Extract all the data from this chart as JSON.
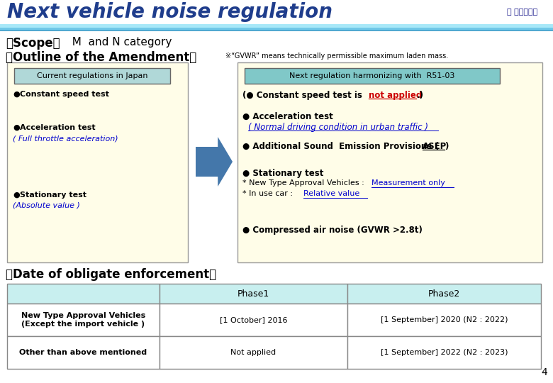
{
  "title": "Next vehicle noise regulation",
  "title_color": "#1F3D8C",
  "title_fontsize": 20,
  "scope_label": "』Scope『",
  "scope_text": "  M  and N category",
  "outline_label": "』Outline of the Amendment『",
  "gvwr_note": "※“GVWR” means technically permissible maximum laden mass.",
  "left_box_bg": "#FFFDE8",
  "right_box_bg": "#FFFDE8",
  "left_header_bg": "#B0D8D8",
  "right_header_bg": "#80C8C8",
  "left_header_text": "Current regulations in Japan",
  "right_header_text": "Next regulation harmonizing with  R51-03",
  "date_label": "』Date of obligate enforcement『",
  "table_header_bg": "#C8EFEF",
  "table_col_headers": [
    "Phase1",
    "Phase2"
  ],
  "table_rows": [
    [
      "New Type Approval Vehicles\n(Except the import vehicle )",
      "[1 October] 2016",
      "[1 September] 2020 (N2 : 2022)"
    ],
    [
      "Other than above mentioned",
      "Not applied",
      "[1 September] 2022 (N2 : 2023)"
    ]
  ],
  "page_number": "4",
  "arrow_color": "#4477AA",
  "blue_link_color": "#0000CD",
  "red_color": "#CC0000",
  "header_top_color": "#A8E8F8",
  "header_mid_color": "#70C8E8",
  "header_bot_color": "#50A8D0"
}
